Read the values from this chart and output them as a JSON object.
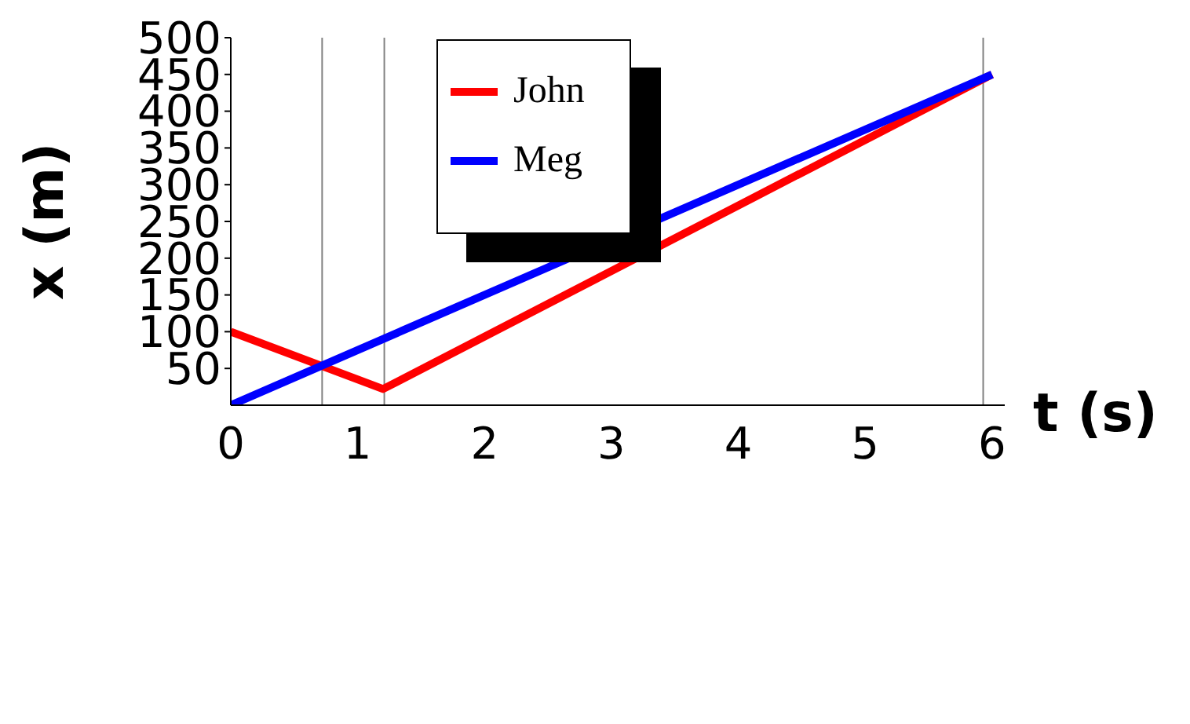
{
  "chart_data": {
    "type": "line",
    "xlabel": "t (s)",
    "ylabel": "x (m)",
    "series": [
      {
        "name": "John",
        "color": "#ff0000",
        "x": [
          0,
          1.2,
          6
        ],
        "values": [
          100,
          22,
          450
        ]
      },
      {
        "name": "Meg",
        "color": "#0000ff",
        "x": [
          0,
          6
        ],
        "values": [
          0,
          450
        ]
      }
    ],
    "xlim": [
      0,
      6.1
    ],
    "xticks": [
      0,
      1,
      2,
      3,
      4,
      5,
      6
    ],
    "ylim": [
      0,
      500
    ],
    "yticks": [
      50,
      100,
      150,
      200,
      250,
      300,
      350,
      400,
      450,
      500
    ],
    "ref_lines": [
      {
        "axis": "x",
        "value": 0.72,
        "color": "#808080"
      },
      {
        "axis": "x",
        "value": 1.21,
        "color": "#808080"
      },
      {
        "axis": "x",
        "value": 5.93,
        "color": "#808080"
      }
    ],
    "legend": "top",
    "marker": "none",
    "line_style": "solid"
  }
}
